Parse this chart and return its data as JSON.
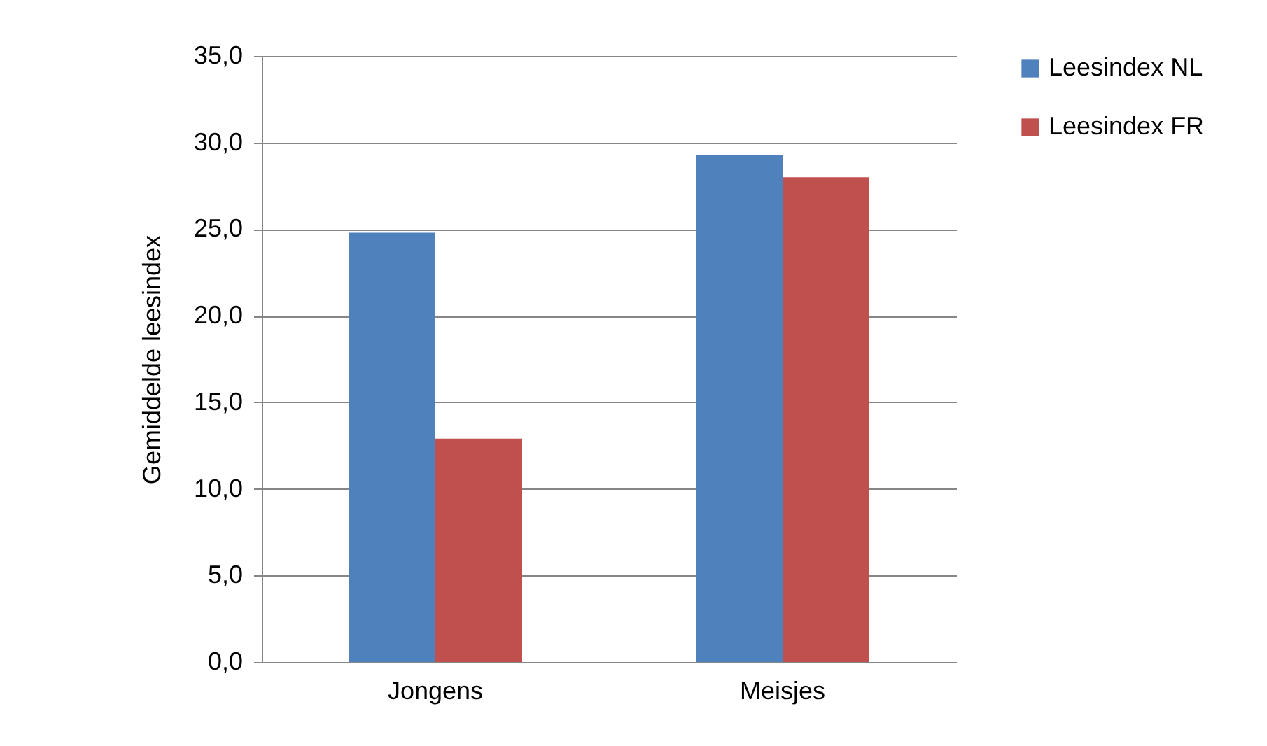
{
  "chart_data": {
    "type": "bar",
    "ylabel": "Gemiddelde leesindex",
    "categories": [
      "Jongens",
      "Meisjes"
    ],
    "series": [
      {
        "name": "Leesindex NL",
        "color": "#4f81bd",
        "values": [
          24.8,
          29.3
        ]
      },
      {
        "name": "Leesindex FR",
        "color": "#c0504d",
        "values": [
          12.9,
          28.0
        ]
      }
    ],
    "ylim": [
      0,
      35
    ],
    "yticks": [
      {
        "value": 0,
        "label": "0,0"
      },
      {
        "value": 5,
        "label": "5,0"
      },
      {
        "value": 10,
        "label": "10,0"
      },
      {
        "value": 15,
        "label": "15,0"
      },
      {
        "value": 20,
        "label": "20,0"
      },
      {
        "value": 25,
        "label": "25,0"
      },
      {
        "value": 30,
        "label": "30,0"
      },
      {
        "value": 35,
        "label": "35,0"
      }
    ],
    "grid": "y",
    "legend": "right"
  }
}
